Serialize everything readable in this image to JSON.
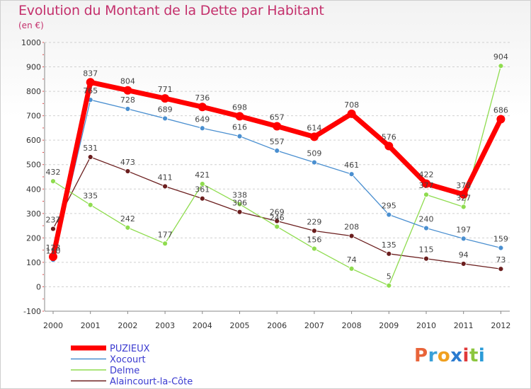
{
  "title": "Evolution du Montant de la Dette par Habitant",
  "subtitle": "(en €)",
  "logo": {
    "letters": [
      "P",
      "r",
      "o",
      "x",
      "i",
      "t",
      "i"
    ],
    "colors": [
      "#e8643a",
      "#3aa0d8",
      "#f0a020",
      "#2a7bd0",
      "#e03a3a",
      "#8cc63f",
      "#2a9bd8"
    ]
  },
  "chart_data": {
    "type": "line",
    "x": [
      "2000",
      "2001",
      "2002",
      "2003",
      "2004",
      "2005",
      "2006",
      "2007",
      "2008",
      "2009",
      "2010",
      "2011",
      "2012"
    ],
    "ylim": [
      -100,
      1000
    ],
    "yticks": [
      -100,
      0,
      100,
      200,
      300,
      400,
      500,
      600,
      700,
      800,
      900,
      1000
    ],
    "grid": "horizontal dashed",
    "legend": "bottom-left",
    "series": [
      {
        "name": "Alaincourt-la-Côte",
        "color": "#6b1e1e",
        "values": [
          237,
          531,
          473,
          411,
          361,
          306,
          269,
          229,
          208,
          135,
          115,
          94,
          73
        ]
      },
      {
        "name": "Delme",
        "color": "#8fdc4f",
        "values": [
          432,
          335,
          242,
          177,
          421,
          338,
          246,
          156,
          74,
          5,
          377,
          327,
          904
        ]
      },
      {
        "name": "Xocourt",
        "color": "#4a8fd0",
        "values": [
          110,
          765,
          728,
          689,
          649,
          616,
          557,
          509,
          461,
          295,
          240,
          197,
          159
        ]
      },
      {
        "name": "PUZIEUX",
        "color": "#ff0000",
        "values": [
          123,
          837,
          804,
          771,
          736,
          698,
          657,
          614,
          708,
          576,
          422,
          378,
          686
        ]
      }
    ],
    "legend_order": [
      "PUZIEUX",
      "Xocourt",
      "Delme",
      "Alaincourt-la-Côte"
    ]
  }
}
